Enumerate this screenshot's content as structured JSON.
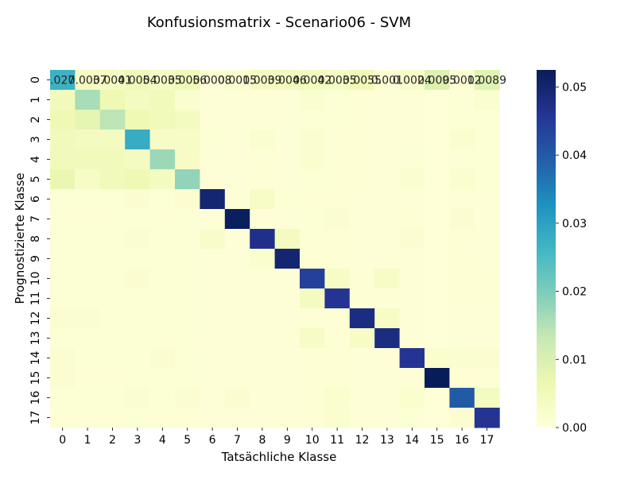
{
  "chart_data": {
    "type": "heatmap",
    "title": "Konfusionsmatrix - Scenario06 - SVM",
    "xlabel": "Tatsächliche Klasse",
    "ylabel": "Prognostizierte Klasse",
    "x_categories": [
      "0",
      "1",
      "2",
      "3",
      "4",
      "5",
      "6",
      "7",
      "8",
      "9",
      "10",
      "11",
      "12",
      "13",
      "14",
      "15",
      "16",
      "17"
    ],
    "y_categories": [
      "0",
      "1",
      "2",
      "3",
      "4",
      "5",
      "6",
      "7",
      "8",
      "9",
      "10",
      "11",
      "12",
      "13",
      "14",
      "15",
      "16",
      "17"
    ],
    "colorbar": {
      "min": 0.0,
      "max": 0.0525,
      "ticks": [
        "0.00",
        "0.01",
        "0.02",
        "0.03",
        "0.04",
        "0.05"
      ],
      "tick_values": [
        0,
        0.01,
        0.02,
        0.03,
        0.04,
        0.05
      ]
    },
    "colormap": "YlGnBu",
    "row0_labels": [
      ".027",
      "0.0037",
      "0.0041",
      "0.0054",
      "0.0035",
      "0.0056",
      "0.0008",
      "0.0015",
      "0.0039",
      "0.0046",
      "0.0042",
      "0.0035",
      "0.0055",
      "0.001",
      "0.0024",
      "0.0095",
      "0.0012",
      "0.0089"
    ],
    "values": [
      [
        0.027,
        0.0037,
        0.0041,
        0.0054,
        0.0035,
        0.0056,
        0.0008,
        0.0015,
        0.0039,
        0.0046,
        0.0042,
        0.0035,
        0.0055,
        0.001,
        0.0024,
        0.0095,
        0.0012,
        0.0089
      ],
      [
        0.005,
        0.016,
        0.006,
        0.004,
        0.005,
        0.002,
        0.0005,
        0.0005,
        0.0005,
        0.0005,
        0.002,
        0.001,
        0.0008,
        0.0005,
        0.0005,
        0.0003,
        0.001,
        0.002
      ],
      [
        0.006,
        0.008,
        0.014,
        0.006,
        0.005,
        0.004,
        0.0005,
        0.0005,
        0.0005,
        0.0005,
        0.001,
        0.001,
        0.0008,
        0.0005,
        0.0005,
        0.0003,
        0.001,
        0.001
      ],
      [
        0.005,
        0.004,
        0.004,
        0.028,
        0.003,
        0.003,
        0.001,
        0.0005,
        0.002,
        0.0005,
        0.002,
        0.0008,
        0.0008,
        0.0005,
        0.0005,
        0.0003,
        0.002,
        0.001
      ],
      [
        0.005,
        0.005,
        0.005,
        0.004,
        0.017,
        0.003,
        0.0005,
        0.0005,
        0.0008,
        0.0005,
        0.002,
        0.0008,
        0.0008,
        0.0005,
        0.001,
        0.0003,
        0.001,
        0.001
      ],
      [
        0.007,
        0.003,
        0.005,
        0.006,
        0.004,
        0.018,
        0.0005,
        0.0005,
        0.0008,
        0.0005,
        0.001,
        0.0008,
        0.0008,
        0.0005,
        0.002,
        0.0003,
        0.002,
        0.001
      ],
      [
        0.001,
        0.001,
        0.001,
        0.0015,
        0.001,
        0.0015,
        0.05,
        0.0005,
        0.003,
        0.001,
        0.0008,
        0.0008,
        0.0005,
        0.0005,
        0.0005,
        0.0003,
        0.0005,
        0.0005
      ],
      [
        0.0008,
        0.0008,
        0.0008,
        0.001,
        0.0008,
        0.001,
        0.0005,
        0.052,
        0.0005,
        0.0005,
        0.001,
        0.0015,
        0.0005,
        0.0005,
        0.0008,
        0.0003,
        0.0015,
        0.0005
      ],
      [
        0.001,
        0.001,
        0.001,
        0.0015,
        0.001,
        0.001,
        0.0025,
        0.0005,
        0.047,
        0.004,
        0.0008,
        0.0008,
        0.0005,
        0.0005,
        0.0015,
        0.0003,
        0.0008,
        0.0005
      ],
      [
        0.001,
        0.001,
        0.001,
        0.001,
        0.001,
        0.001,
        0.0005,
        0.0005,
        0.002,
        0.05,
        0.0008,
        0.0008,
        0.0005,
        0.0005,
        0.0005,
        0.0003,
        0.0008,
        0.0005
      ],
      [
        0.001,
        0.001,
        0.001,
        0.0015,
        0.001,
        0.001,
        0.0005,
        0.0005,
        0.0005,
        0.0005,
        0.044,
        0.003,
        0.0008,
        0.003,
        0.0005,
        0.0003,
        0.0008,
        0.0008
      ],
      [
        0.001,
        0.001,
        0.001,
        0.001,
        0.001,
        0.001,
        0.0005,
        0.0005,
        0.0005,
        0.0005,
        0.004,
        0.046,
        0.0008,
        0.0008,
        0.0005,
        0.0003,
        0.0008,
        0.0008
      ],
      [
        0.0015,
        0.0015,
        0.001,
        0.001,
        0.001,
        0.001,
        0.0005,
        0.0005,
        0.0005,
        0.0005,
        0.0008,
        0.0008,
        0.048,
        0.003,
        0.0005,
        0.0003,
        0.0005,
        0.0005
      ],
      [
        0.001,
        0.001,
        0.001,
        0.001,
        0.0008,
        0.0008,
        0.0005,
        0.0005,
        0.0008,
        0.0008,
        0.003,
        0.0008,
        0.003,
        0.048,
        0.0005,
        0.0003,
        0.0005,
        0.0005
      ],
      [
        0.0015,
        0.001,
        0.001,
        0.001,
        0.0015,
        0.001,
        0.0005,
        0.0005,
        0.0005,
        0.0005,
        0.0008,
        0.0008,
        0.0005,
        0.0005,
        0.046,
        0.002,
        0.002,
        0.0015
      ],
      [
        0.0015,
        0.0008,
        0.0008,
        0.001,
        0.001,
        0.001,
        0.0005,
        0.0005,
        0.0005,
        0.0005,
        0.0008,
        0.0008,
        0.0005,
        0.0005,
        0.0005,
        0.0525,
        0.0008,
        0.0008
      ],
      [
        0.001,
        0.001,
        0.001,
        0.0015,
        0.001,
        0.0015,
        0.0005,
        0.0015,
        0.0005,
        0.0005,
        0.0008,
        0.002,
        0.0005,
        0.0005,
        0.002,
        0.0003,
        0.04,
        0.004
      ],
      [
        0.0008,
        0.0008,
        0.0008,
        0.001,
        0.0008,
        0.0008,
        0.0005,
        0.0005,
        0.0005,
        0.0005,
        0.0008,
        0.002,
        0.0005,
        0.0005,
        0.001,
        0.0003,
        0.0015,
        0.046
      ]
    ]
  }
}
